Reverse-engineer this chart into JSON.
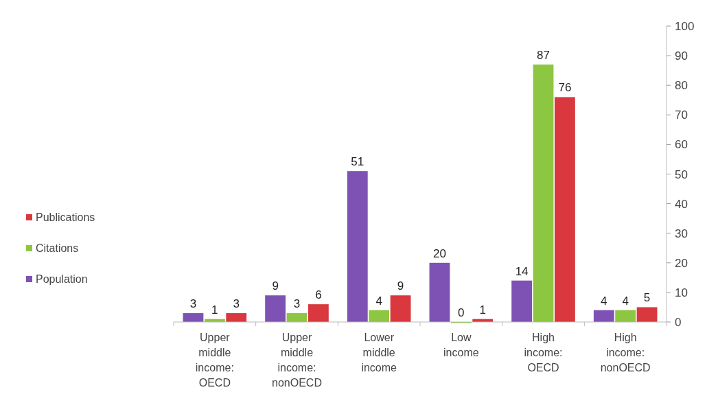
{
  "chart_data": {
    "type": "bar",
    "categories": [
      "Upper middle income: OECD",
      "Upper middle income: nonOECD",
      "Lower middle income",
      "Low income",
      "High income: OECD",
      "High income: nonOECD"
    ],
    "series": [
      {
        "name": "Population",
        "color": "#7e52b4",
        "values": [
          3,
          9,
          51,
          20,
          14,
          4
        ]
      },
      {
        "name": "Citations",
        "color": "#8dc640",
        "values": [
          1,
          3,
          4,
          0,
          87,
          4
        ]
      },
      {
        "name": "Publications",
        "color": "#d8383e",
        "values": [
          3,
          6,
          9,
          1,
          76,
          5
        ]
      }
    ],
    "ylim": [
      0,
      100
    ],
    "yticks": [
      0,
      10,
      20,
      30,
      40,
      50,
      60,
      70,
      80,
      90,
      100
    ],
    "data_labels": true,
    "legend": "left",
    "grid": false
  }
}
